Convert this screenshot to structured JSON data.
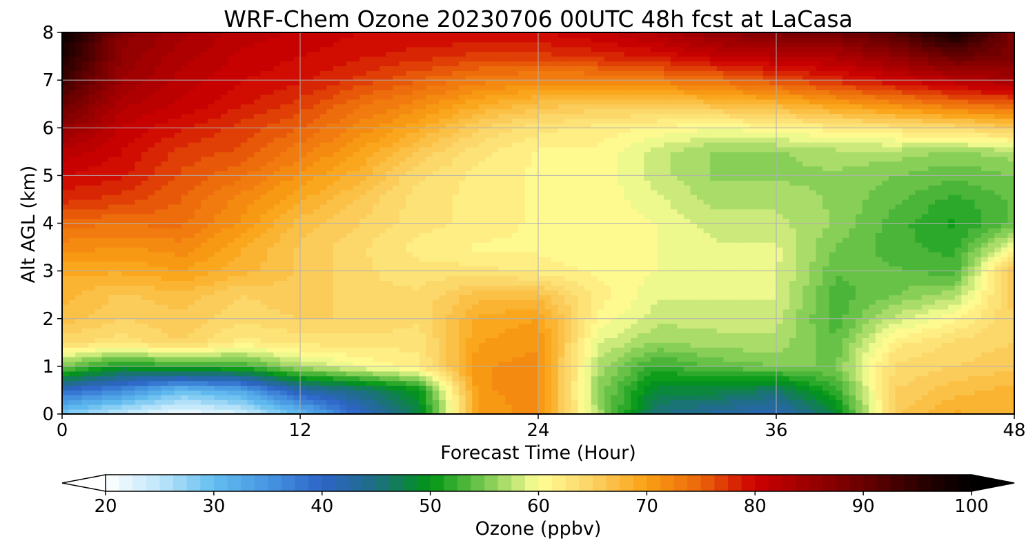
{
  "chart_data": {
    "type": "heatmap",
    "title": "WRF-Chem Ozone  20230706 00UTC 48h fcst at LaCasa",
    "xlabel": "Forecast Time (Hour)",
    "ylabel": "Alt AGL (km)",
    "xlim": [
      0,
      48
    ],
    "ylim": [
      0,
      8
    ],
    "x_ticks": [
      0,
      12,
      24,
      36,
      48
    ],
    "y_ticks": [
      0,
      1,
      2,
      3,
      4,
      5,
      6,
      7,
      8
    ],
    "grid": true,
    "x_hours": [
      0,
      3,
      6,
      9,
      12,
      15,
      18,
      21,
      24,
      27,
      30,
      33,
      36,
      39,
      42,
      45,
      48
    ],
    "altitudes_km": [
      0,
      0.5,
      1,
      1.5,
      2,
      2.5,
      3,
      3.5,
      4,
      4.5,
      5,
      5.5,
      6,
      6.5,
      7,
      7.5,
      8
    ],
    "ozone_ppbv": [
      [
        28,
        24,
        21,
        23,
        30,
        40,
        48,
        70,
        72,
        57,
        45,
        43,
        41,
        48,
        66,
        69,
        68
      ],
      [
        40,
        36,
        30,
        33,
        42,
        45,
        50,
        71,
        72,
        56,
        48,
        48,
        46,
        52,
        65,
        67,
        68
      ],
      [
        55,
        50,
        52,
        52,
        57,
        60,
        62,
        71,
        72,
        57,
        52,
        54,
        55,
        55,
        64,
        65,
        66
      ],
      [
        64,
        63,
        65,
        62,
        63,
        63,
        63,
        70,
        71,
        59,
        56,
        57,
        57,
        54,
        62,
        64,
        65
      ],
      [
        67,
        65,
        66,
        64,
        65,
        65,
        64,
        69,
        70,
        61,
        58,
        58,
        58,
        53,
        58,
        61,
        65
      ],
      [
        68,
        66,
        67,
        65,
        66,
        64,
        64,
        67,
        67,
        62,
        59,
        59,
        59,
        53,
        55,
        57,
        66
      ],
      [
        69,
        69,
        70,
        68,
        66,
        64,
        63,
        63,
        62,
        61,
        60,
        60,
        59,
        54,
        54,
        53,
        67
      ],
      [
        72,
        71,
        72,
        69,
        66,
        64,
        62,
        61,
        61,
        60,
        60,
        59,
        59,
        55,
        53,
        52,
        60
      ],
      [
        74,
        74,
        74,
        71,
        67,
        65,
        63,
        62,
        61,
        61,
        60,
        58,
        58,
        56,
        53,
        51,
        54
      ],
      [
        78,
        77,
        75,
        72,
        69,
        66,
        63,
        62,
        61,
        61,
        59,
        57,
        57,
        56,
        54,
        52,
        54
      ],
      [
        80,
        79,
        76,
        74,
        71,
        68,
        64,
        62,
        61,
        61,
        58,
        56,
        56,
        56,
        55,
        54,
        55
      ],
      [
        82,
        80,
        77,
        76,
        73,
        70,
        66,
        63,
        61,
        61,
        58,
        56,
        56,
        57,
        57,
        56,
        57
      ],
      [
        86,
        81,
        79,
        77,
        75,
        72,
        69,
        65,
        63,
        62,
        61,
        60,
        61,
        62,
        63,
        64,
        66
      ],
      [
        90,
        83,
        81,
        79,
        77,
        74,
        72,
        69,
        67,
        66,
        66,
        67,
        68,
        70,
        72,
        74,
        75
      ],
      [
        94,
        85,
        82,
        80,
        79,
        77,
        75,
        73,
        72,
        72,
        73,
        74,
        76,
        78,
        80,
        82,
        84
      ],
      [
        97,
        86,
        83,
        81,
        80,
        79,
        78,
        77,
        77,
        78,
        79,
        81,
        82,
        83,
        86,
        90,
        88
      ],
      [
        99,
        87,
        84,
        82,
        81,
        80,
        80,
        80,
        80,
        81,
        83,
        86,
        88,
        89,
        92,
        98,
        88
      ]
    ],
    "colorbar": {
      "label": "Ozone  (ppbv)",
      "min": 20,
      "max": 100,
      "extend": "both",
      "ticks": [
        20,
        30,
        40,
        50,
        60,
        70,
        80,
        90,
        100
      ]
    }
  }
}
